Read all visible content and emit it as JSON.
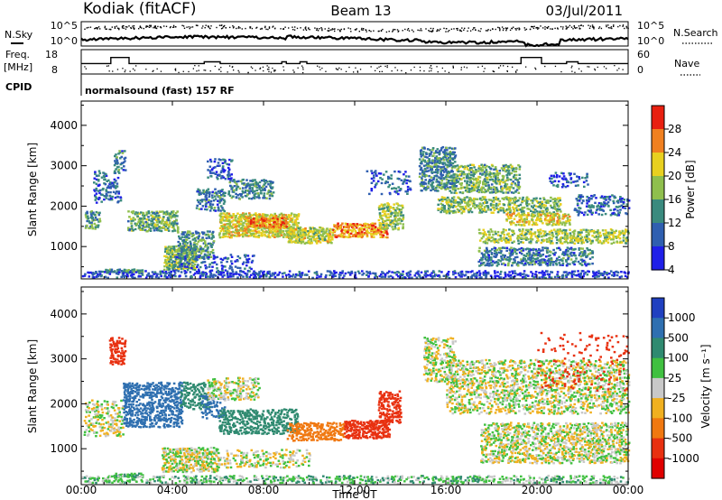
{
  "header": {
    "station": "Kodiak (fitACF)",
    "beam": "Beam 13",
    "date": "03/Jul/2011"
  },
  "params": {
    "nsky_label": "N.Sky",
    "nsearch_label": "N.Search",
    "noise_ticks": [
      "10^5",
      "10^0"
    ],
    "freq_label": "Freq.",
    "freq_unit": "[MHz]",
    "freq_ticks": [
      "18",
      "8"
    ],
    "nave_label": "Nave",
    "nave_ticks": [
      "60",
      "0"
    ],
    "cpid_label": "CPID",
    "cpid_value": "normalsound (fast) 157 RF"
  },
  "axes": {
    "time_label": "Time UT",
    "time_ticks": [
      "00:00",
      "04:00",
      "08:00",
      "12:00",
      "16:00",
      "20:00",
      "00:00"
    ],
    "range_label": "Slant Range [km]",
    "range_ticks": [
      "1000",
      "2000",
      "3000",
      "4000"
    ],
    "range_lim": [
      200,
      4600
    ]
  },
  "colorbars": {
    "power": {
      "label": "Power [dB]",
      "ticks": [
        "4",
        "8",
        "12",
        "16",
        "20",
        "24",
        "28"
      ],
      "colors": [
        "#1f1fe8",
        "#2f5fb0",
        "#3a8a7e",
        "#8fbf4d",
        "#e8d020",
        "#f08020",
        "#e82010"
      ]
    },
    "velocity": {
      "label": "Velocity [m s⁻¹]",
      "ticks": [
        "1000",
        "500",
        "100",
        "25",
        "-25",
        "-100",
        "-500",
        "-1000"
      ],
      "colors": [
        "#2040c0",
        "#2e6fb0",
        "#2f8a70",
        "#40c040",
        "#c8c8c8",
        "#f0b020",
        "#f07810",
        "#e83010",
        "#e00000"
      ]
    }
  },
  "chart_data": [
    {
      "type": "heatmap",
      "title": "Power [dB]",
      "xlabel": "Time UT",
      "ylabel": "Slant Range [km]",
      "xlim": [
        0,
        24
      ],
      "ylim": [
        200,
        4600
      ],
      "zlim": [
        2,
        30
      ],
      "blobs": [
        {
          "t": [
            0.1,
            0.8
          ],
          "r": [
            1450,
            1900
          ],
          "v": 12,
          "d": 0.55
        },
        {
          "t": [
            0.5,
            1.7
          ],
          "r": [
            2100,
            2900
          ],
          "v": 9,
          "d": 0.35
        },
        {
          "t": [
            1.4,
            1.9
          ],
          "r": [
            2900,
            3400
          ],
          "v": 10,
          "d": 0.45
        },
        {
          "t": [
            1.0,
            2.7
          ],
          "r": [
            380,
            460
          ],
          "v": 12,
          "d": 0.9
        },
        {
          "t": [
            2.0,
            4.2
          ],
          "r": [
            1400,
            1900
          ],
          "v": 14,
          "d": 0.6
        },
        {
          "t": [
            3.6,
            5.0
          ],
          "r": [
            450,
            1050
          ],
          "v": 16,
          "d": 0.8
        },
        {
          "t": [
            4.2,
            5.8
          ],
          "r": [
            700,
            1400
          ],
          "v": 12,
          "d": 0.55
        },
        {
          "t": [
            5.0,
            6.3
          ],
          "r": [
            1900,
            2450
          ],
          "v": 10,
          "d": 0.5
        },
        {
          "t": [
            5.5,
            6.6
          ],
          "r": [
            2700,
            3200
          ],
          "v": 8,
          "d": 0.35
        },
        {
          "t": [
            6.0,
            9.5
          ],
          "r": [
            1250,
            1850
          ],
          "v": 19,
          "d": 0.75
        },
        {
          "t": [
            7.2,
            9.0
          ],
          "r": [
            1500,
            1750
          ],
          "v": 24,
          "d": 0.7
        },
        {
          "t": [
            6.4,
            8.4
          ],
          "r": [
            2200,
            2700
          ],
          "v": 11,
          "d": 0.45
        },
        {
          "t": [
            9.0,
            11.0
          ],
          "r": [
            1100,
            1500
          ],
          "v": 18,
          "d": 0.75
        },
        {
          "t": [
            11.0,
            13.4
          ],
          "r": [
            1250,
            1600
          ],
          "v": 23,
          "d": 0.75
        },
        {
          "t": [
            13.0,
            14.1
          ],
          "r": [
            1450,
            2100
          ],
          "v": 16,
          "d": 0.6
        },
        {
          "t": [
            4.0,
            7.6
          ],
          "r": [
            420,
            820
          ],
          "v": 8,
          "d": 0.25
        },
        {
          "t": [
            12.5,
            14.5
          ],
          "r": [
            2300,
            2900
          ],
          "v": 8,
          "d": 0.2
        },
        {
          "t": [
            14.8,
            16.4
          ],
          "r": [
            2400,
            3500
          ],
          "v": 11,
          "d": 0.55
        },
        {
          "t": [
            16.2,
            19.2
          ],
          "r": [
            2350,
            3050
          ],
          "v": 14,
          "d": 0.5
        },
        {
          "t": [
            15.6,
            21.0
          ],
          "r": [
            1850,
            2250
          ],
          "v": 15,
          "d": 0.55
        },
        {
          "t": [
            18.6,
            21.4
          ],
          "r": [
            1550,
            1850
          ],
          "v": 19,
          "d": 0.55
        },
        {
          "t": [
            17.4,
            24.0
          ],
          "r": [
            1100,
            1450
          ],
          "v": 17,
          "d": 0.55
        },
        {
          "t": [
            17.4,
            22.4
          ],
          "r": [
            550,
            1000
          ],
          "v": 10,
          "d": 0.5
        },
        {
          "t": [
            21.6,
            24.0
          ],
          "r": [
            1800,
            2300
          ],
          "v": 9,
          "d": 0.4
        },
        {
          "t": [
            20.5,
            22.2
          ],
          "r": [
            2500,
            2850
          ],
          "v": 8,
          "d": 0.35
        },
        {
          "t": [
            0.0,
            24.0
          ],
          "r": [
            250,
            420
          ],
          "v": 6,
          "d": 0.45
        }
      ]
    },
    {
      "type": "heatmap",
      "title": "Velocity [m s⁻¹]",
      "xlabel": "Time UT",
      "ylabel": "Slant Range [km]",
      "xlim": [
        0,
        24
      ],
      "ylim": [
        200,
        4600
      ],
      "zlim": [
        -1000,
        1000
      ],
      "blobs": [
        {
          "t": [
            0.1,
            1.8
          ],
          "r": [
            1300,
            2100
          ],
          "v": 0,
          "d": 0.4
        },
        {
          "t": [
            1.2,
            1.9
          ],
          "r": [
            2900,
            3500
          ],
          "v": -700,
          "d": 0.55
        },
        {
          "t": [
            1.8,
            4.4
          ],
          "r": [
            1500,
            2500
          ],
          "v": 700,
          "d": 0.6
        },
        {
          "t": [
            1.4,
            2.7
          ],
          "r": [
            380,
            470
          ],
          "v": 80,
          "d": 0.9
        },
        {
          "t": [
            4.3,
            5.6
          ],
          "r": [
            1900,
            2500
          ],
          "v": 400,
          "d": 0.5
        },
        {
          "t": [
            5.2,
            6.3
          ],
          "r": [
            1700,
            2200
          ],
          "v": 800,
          "d": 0.45
        },
        {
          "t": [
            6.0,
            9.5
          ],
          "r": [
            1350,
            1900
          ],
          "v": 200,
          "d": 0.55
        },
        {
          "t": [
            5.5,
            7.8
          ],
          "r": [
            2100,
            2600
          ],
          "v": 0,
          "d": 0.5
        },
        {
          "t": [
            9.0,
            11.5
          ],
          "r": [
            1200,
            1600
          ],
          "v": -250,
          "d": 0.65
        },
        {
          "t": [
            11.5,
            13.5
          ],
          "r": [
            1250,
            1650
          ],
          "v": -650,
          "d": 0.8
        },
        {
          "t": [
            13.0,
            14.0
          ],
          "r": [
            1600,
            2300
          ],
          "v": -800,
          "d": 0.6
        },
        {
          "t": [
            3.5,
            6.0
          ],
          "r": [
            500,
            1050
          ],
          "v": 0,
          "d": 0.7
        },
        {
          "t": [
            6.0,
            10.0
          ],
          "r": [
            600,
            1000
          ],
          "v": 0,
          "d": 0.35
        },
        {
          "t": [
            15.0,
            16.4
          ],
          "r": [
            2500,
            3500
          ],
          "v": 0,
          "d": 0.5
        },
        {
          "t": [
            16.0,
            24.0
          ],
          "r": [
            1800,
            3000
          ],
          "v": 0,
          "d": 0.45
        },
        {
          "t": [
            17.5,
            24.0
          ],
          "r": [
            700,
            1600
          ],
          "v": 0,
          "d": 0.55
        },
        {
          "t": [
            0.0,
            24.0
          ],
          "r": [
            250,
            420
          ],
          "v": 60,
          "d": 0.45
        },
        {
          "t": [
            20.0,
            24.0
          ],
          "r": [
            2300,
            3600
          ],
          "v": -600,
          "d": 0.08
        }
      ]
    }
  ]
}
